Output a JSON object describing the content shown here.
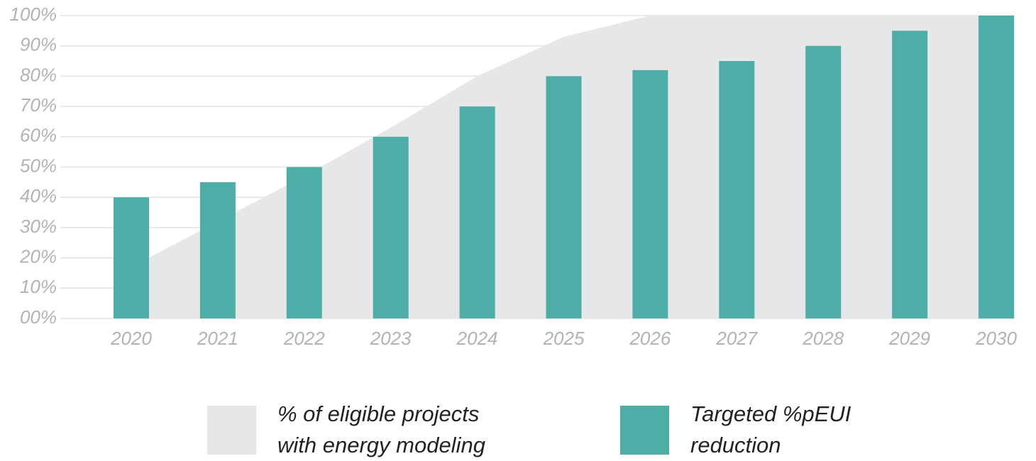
{
  "chart_data": {
    "type": "bar",
    "categories": [
      "2020",
      "2021",
      "2022",
      "2023",
      "2024",
      "2025",
      "2026",
      "2027",
      "2028",
      "2029",
      "2030"
    ],
    "series": [
      {
        "name": "% of eligible projects with energy modeling",
        "type": "area",
        "color": "#e6e7e8",
        "values": [
          17,
          32,
          47,
          63,
          80,
          93,
          100,
          100,
          100,
          100,
          100
        ]
      },
      {
        "name": "Targeted %pEUI reduction",
        "type": "bar",
        "color": "#4fada8",
        "values": [
          40,
          45,
          50,
          60,
          70,
          80,
          82,
          85,
          90,
          95,
          100
        ]
      }
    ],
    "ylim": [
      0,
      100
    ],
    "yticks": [
      {
        "value": 0,
        "label": "00%"
      },
      {
        "value": 10,
        "label": "10%"
      },
      {
        "value": 20,
        "label": "20%"
      },
      {
        "value": 30,
        "label": "30%"
      },
      {
        "value": 40,
        "label": "40%"
      },
      {
        "value": 50,
        "label": "50%"
      },
      {
        "value": 60,
        "label": "60%"
      },
      {
        "value": 70,
        "label": "70%"
      },
      {
        "value": 80,
        "label": "80%"
      },
      {
        "value": 90,
        "label": "90%"
      },
      {
        "value": 100,
        "label": "100%"
      }
    ],
    "grid": true
  }
}
